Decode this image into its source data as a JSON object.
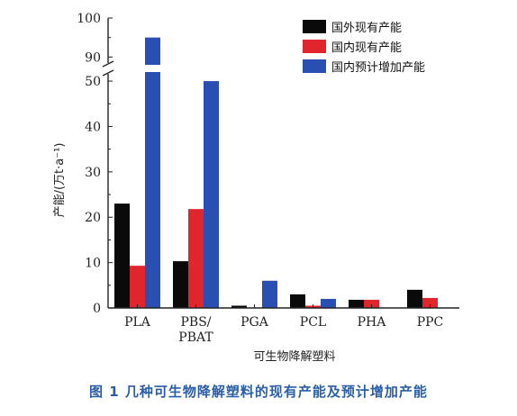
{
  "chart_data": {
    "type": "bar",
    "categories": [
      "PLA",
      "PBS/\nPBAT",
      "PGA",
      "PCL",
      "PHA",
      "PPC"
    ],
    "series": [
      {
        "name": "国外现有产能",
        "color": "#0a0a0a",
        "values": [
          23,
          10.3,
          0.5,
          3,
          1.8,
          4
        ]
      },
      {
        "name": "国内现有产能",
        "color": "#e0262c",
        "values": [
          9.3,
          21.8,
          0,
          0.5,
          1.8,
          2.2
        ]
      },
      {
        "name": "国内预计增加产能",
        "color": "#2a4fb3",
        "values": [
          95,
          50,
          6,
          2,
          0,
          0
        ]
      }
    ],
    "ylabel": "产能/(万t·a⁻¹)",
    "xlabel": "可生物降解塑料",
    "yticks_lower": [
      "0",
      "10",
      "20",
      "30",
      "40",
      "50"
    ],
    "yticks_upper": [
      "90",
      "100"
    ],
    "ylim_lower": [
      0,
      52
    ],
    "ylim_upper": [
      88,
      100
    ],
    "axis_break": true,
    "legend": "top-right"
  },
  "caption": "图 1   几种可生物降解塑料的现有产能及预计增加产能"
}
